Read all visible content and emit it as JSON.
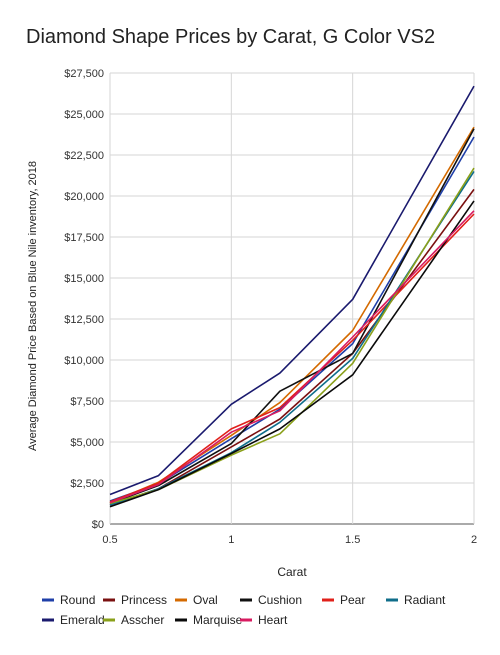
{
  "chart_data": {
    "type": "line",
    "title": "Diamond Shape Prices by Carat, G Color VS2",
    "xlabel": "Carat",
    "ylabel": "Average Diamond Price Based on Blue Nile inventory, 2018",
    "x": [
      0.5,
      0.7,
      1,
      1.2,
      1.5,
      2
    ],
    "xlim": [
      0.5,
      2
    ],
    "ylim": [
      0,
      27500
    ],
    "x_ticks": [
      0.5,
      1,
      1.5,
      2
    ],
    "x_tick_labels": [
      "0.5",
      "1",
      "1.5",
      "2"
    ],
    "y_ticks": [
      0,
      2500,
      5000,
      7500,
      10000,
      12500,
      15000,
      17500,
      20000,
      22500,
      25000,
      27500
    ],
    "y_tick_labels": [
      "$0",
      "$2,500",
      "$5,000",
      "$7,500",
      "$10,000",
      "$12,500",
      "$15,000",
      "$17,500",
      "$20,000",
      "$22,500",
      "$25,000",
      "$27,500"
    ],
    "grid": true,
    "legend_position": "bottom",
    "series": [
      {
        "name": "Round",
        "color": "#1f3fa8",
        "values": [
          1400,
          2450,
          5200,
          7000,
          11000,
          23600
        ]
      },
      {
        "name": "Princess",
        "color": "#7a1010",
        "values": [
          1150,
          2150,
          4700,
          6400,
          10400,
          20400
        ]
      },
      {
        "name": "Oval",
        "color": "#d46a00",
        "values": [
          1300,
          2550,
          5400,
          7400,
          11800,
          24200
        ]
      },
      {
        "name": "Cushion",
        "color": "#111111",
        "values": [
          1250,
          2350,
          4900,
          8100,
          10400,
          24100
        ]
      },
      {
        "name": "Pear",
        "color": "#e0201a",
        "values": [
          1350,
          2500,
          5800,
          7100,
          11200,
          18900
        ]
      },
      {
        "name": "Radiant",
        "color": "#0f6d8a",
        "values": [
          1150,
          2150,
          4350,
          6200,
          10100,
          21500
        ]
      },
      {
        "name": "Emerald",
        "color": "#1a1a6e",
        "values": [
          1800,
          2950,
          7300,
          9200,
          13700,
          26700
        ]
      },
      {
        "name": "Asscher",
        "color": "#8aa01a",
        "values": [
          1250,
          2100,
          4200,
          5500,
          9800,
          21700
        ]
      },
      {
        "name": "Marquise",
        "color": "#0a0a0a",
        "values": [
          1050,
          2100,
          4300,
          5800,
          9100,
          19700
        ]
      },
      {
        "name": "Heart",
        "color": "#d81b60",
        "values": [
          1300,
          2400,
          5600,
          6900,
          11400,
          19100
        ]
      }
    ]
  }
}
